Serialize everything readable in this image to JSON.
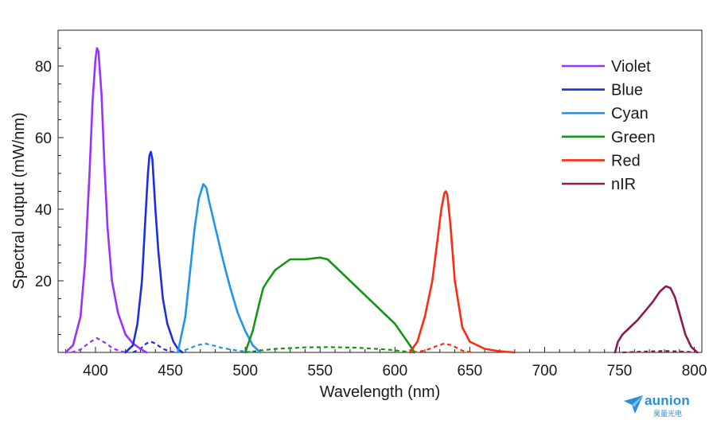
{
  "chart_data": {
    "type": "line",
    "xlabel": "Wavelength (nm)",
    "ylabel": "Spectral output (mW/nm)",
    "xlim": [
      375,
      805
    ],
    "ylim": [
      0,
      90
    ],
    "xticks": [
      400,
      450,
      500,
      550,
      600,
      650,
      700,
      750,
      800
    ],
    "yticks": [
      20,
      40,
      60,
      80
    ],
    "grid": false,
    "legend_position": "top-right",
    "series": [
      {
        "name": "Violet",
        "color": "#9b30ff",
        "x": [
          380,
          385,
          390,
          393,
          396,
          398,
          400,
          401,
          402,
          404,
          406,
          408,
          411,
          415,
          420,
          425,
          430,
          434
        ],
        "values": [
          0,
          2,
          10,
          25,
          50,
          70,
          82,
          85,
          84,
          72,
          52,
          35,
          20,
          11,
          5,
          2.5,
          1,
          0
        ],
        "dashed_x": [
          384,
          390,
          396,
          401,
          406,
          412,
          418,
          422
        ],
        "dashed_values": [
          0,
          0.8,
          2.8,
          4,
          2.8,
          1,
          0.2,
          0
        ]
      },
      {
        "name": "Blue",
        "color": "#1c2ee0",
        "x": [
          420,
          425,
          428,
          431,
          433,
          435,
          436,
          437,
          438,
          440,
          442,
          445,
          448,
          452,
          455,
          458
        ],
        "values": [
          0,
          2,
          8,
          20,
          35,
          50,
          55,
          56,
          54,
          40,
          28,
          15,
          8,
          3,
          1,
          0
        ],
        "dashed_x": [
          425,
          430,
          434,
          437,
          440,
          445,
          450,
          455
        ],
        "dashed_values": [
          0,
          1,
          2.5,
          3,
          2.5,
          1,
          0.2,
          0
        ]
      },
      {
        "name": "Cyan",
        "color": "#1e96f0",
        "x": [
          455,
          460,
          463,
          466,
          469,
          472,
          474,
          476,
          480,
          485,
          490,
          495,
          500,
          505,
          510
        ],
        "values": [
          0,
          10,
          22,
          34,
          43,
          47,
          46,
          42,
          35,
          26,
          18,
          11,
          6,
          2,
          0
        ],
        "dashed_x": [
          455,
          462,
          468,
          473,
          478,
          485,
          495,
          505
        ],
        "dashed_values": [
          0,
          1,
          2,
          2.5,
          2,
          1.2,
          0.5,
          0
        ],
        "dashed_color": "#1e96f0"
      },
      {
        "name": "Green",
        "color": "#149614",
        "x": [
          500,
          505,
          509,
          512,
          515,
          520,
          530,
          540,
          550,
          555,
          560,
          570,
          580,
          590,
          600,
          605,
          610,
          613
        ],
        "values": [
          0,
          6,
          13,
          18,
          20,
          23,
          26,
          26,
          26.5,
          26,
          24,
          20,
          16,
          12,
          8,
          5,
          2,
          0
        ],
        "dashed_x": [
          500,
          520,
          540,
          555,
          575,
          595,
          612
        ],
        "dashed_values": [
          0,
          1,
          1.4,
          1.5,
          1.3,
          0.8,
          0
        ],
        "dashed_color": "#149614"
      },
      {
        "name": "Red",
        "color": "#ff2a12",
        "x": [
          610,
          615,
          620,
          625,
          628,
          631,
          633,
          634,
          635,
          637,
          640,
          645,
          650,
          660,
          670,
          680
        ],
        "values": [
          0,
          3,
          10,
          20,
          30,
          40,
          44.5,
          45,
          44,
          36,
          20,
          7,
          3,
          1,
          0.3,
          0
        ],
        "dashed_x": [
          612,
          620,
          628,
          633,
          638,
          645,
          652
        ],
        "dashed_values": [
          0,
          0.5,
          1.8,
          2.5,
          2,
          0.5,
          0
        ],
        "dashed_color": "#ff2a12"
      },
      {
        "name": "nIR",
        "color": "#8b1a55",
        "x": [
          747,
          749,
          752,
          757,
          762,
          767,
          772,
          777,
          781,
          784,
          787,
          790,
          794,
          798,
          802
        ],
        "values": [
          0,
          3,
          5,
          7,
          9,
          11.5,
          14,
          17,
          18.5,
          18,
          15.5,
          11,
          5,
          1.5,
          0
        ],
        "dashed_x": [
          752,
          765,
          780,
          795,
          800
        ],
        "dashed_values": [
          0,
          0.2,
          0.4,
          0.2,
          0
        ],
        "dashed_color": "#8b1a55"
      }
    ]
  },
  "logo": {
    "text": "aunion",
    "subtext": "昊量光电",
    "color": "#2a8fd6"
  }
}
